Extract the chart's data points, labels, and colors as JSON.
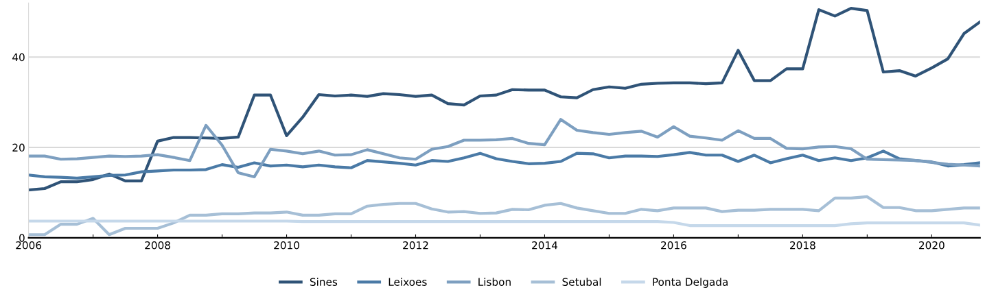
{
  "chart_data": {
    "type": "line",
    "x": [
      2006.0,
      2006.25,
      2006.5,
      2006.75,
      2007.0,
      2007.25,
      2007.5,
      2007.75,
      2008.0,
      2008.25,
      2008.5,
      2008.75,
      2009.0,
      2009.25,
      2009.5,
      2009.75,
      2010.0,
      2010.25,
      2010.5,
      2010.75,
      2011.0,
      2011.25,
      2011.5,
      2011.75,
      2012.0,
      2012.25,
      2012.5,
      2012.75,
      2013.0,
      2013.25,
      2013.5,
      2013.75,
      2014.0,
      2014.25,
      2014.5,
      2014.75,
      2015.0,
      2015.25,
      2015.5,
      2015.75,
      2016.0,
      2016.25,
      2016.5,
      2016.75,
      2017.0,
      2017.25,
      2017.5,
      2017.75,
      2018.0,
      2018.25,
      2018.5,
      2018.75,
      2019.0,
      2019.25,
      2019.5,
      2019.75,
      2020.0,
      2020.25,
      2020.5,
      2020.75
    ],
    "series": [
      {
        "name": "Sines",
        "color": "#2f5377",
        "values": [
          10.6,
          10.9,
          12.4,
          12.4,
          12.9,
          14.1,
          12.6,
          12.6,
          21.4,
          22.2,
          22.2,
          22.1,
          22.0,
          22.3,
          31.6,
          31.6,
          22.6,
          26.7,
          31.7,
          31.4,
          31.6,
          31.3,
          31.9,
          31.7,
          31.3,
          31.6,
          29.7,
          29.4,
          31.4,
          31.6,
          32.8,
          32.7,
          32.7,
          31.2,
          31.0,
          32.8,
          33.4,
          33.1,
          34.0,
          34.2,
          34.3,
          34.3,
          34.1,
          34.3,
          41.5,
          34.8,
          34.8,
          37.4,
          37.4,
          50.5,
          49.1,
          50.8,
          50.3,
          36.7,
          37.0,
          35.8,
          37.6,
          39.6,
          45.2,
          47.8
        ]
      },
      {
        "name": "Leixoes",
        "color": "#4a7aa6",
        "values": [
          13.9,
          13.5,
          13.4,
          13.2,
          13.5,
          13.8,
          13.9,
          14.6,
          14.8,
          15.0,
          15.0,
          15.1,
          16.2,
          15.6,
          16.6,
          15.9,
          16.1,
          15.7,
          16.1,
          15.7,
          15.5,
          17.1,
          16.8,
          16.5,
          16.1,
          17.1,
          16.9,
          17.7,
          18.7,
          17.5,
          16.9,
          16.4,
          16.5,
          16.9,
          18.7,
          18.6,
          17.7,
          18.1,
          18.1,
          18.0,
          18.4,
          18.9,
          18.3,
          18.3,
          16.9,
          18.3,
          16.6,
          17.5,
          18.3,
          17.1,
          17.7,
          17.1,
          17.7,
          19.2,
          17.5,
          17.1,
          16.8,
          15.9,
          16.2,
          16.6
        ]
      },
      {
        "name": "Lisbon",
        "color": "#7d9fc0",
        "values": [
          18.1,
          18.1,
          17.4,
          17.5,
          17.8,
          18.1,
          18.0,
          18.1,
          18.4,
          17.8,
          17.1,
          24.9,
          20.5,
          14.4,
          13.5,
          19.6,
          19.2,
          18.6,
          19.2,
          18.3,
          18.4,
          19.5,
          18.6,
          17.7,
          17.4,
          19.6,
          20.2,
          21.6,
          21.6,
          21.7,
          22.0,
          20.9,
          20.6,
          26.2,
          23.8,
          23.3,
          22.9,
          23.3,
          23.6,
          22.3,
          24.6,
          22.5,
          22.1,
          21.6,
          23.7,
          22.0,
          22.0,
          19.8,
          19.7,
          20.1,
          20.2,
          19.7,
          17.4,
          17.3,
          17.2,
          17.1,
          16.7,
          16.3,
          16.1,
          15.9
        ]
      },
      {
        "name": "Setubal",
        "color": "#a6bfd6",
        "values": [
          0.7,
          0.7,
          3.0,
          3.0,
          4.3,
          0.7,
          2.1,
          2.1,
          2.1,
          3.3,
          5.0,
          5.0,
          5.3,
          5.3,
          5.5,
          5.5,
          5.7,
          5.0,
          5.0,
          5.3,
          5.3,
          7.0,
          7.4,
          7.6,
          7.6,
          6.4,
          5.7,
          5.8,
          5.4,
          5.5,
          6.3,
          6.2,
          7.2,
          7.6,
          6.6,
          6.0,
          5.4,
          5.4,
          6.3,
          6.0,
          6.6,
          6.6,
          6.6,
          5.8,
          6.1,
          6.1,
          6.3,
          6.3,
          6.3,
          6.0,
          8.8,
          8.8,
          9.1,
          6.7,
          6.7,
          6.0,
          6.0,
          6.3,
          6.6,
          6.6
        ]
      },
      {
        "name": "Ponta Delgada",
        "color": "#c5d8ea",
        "values": [
          3.7,
          3.7,
          3.7,
          3.7,
          3.7,
          3.7,
          3.7,
          3.7,
          3.7,
          3.7,
          3.7,
          3.7,
          3.7,
          3.7,
          3.7,
          3.7,
          3.7,
          3.6,
          3.6,
          3.6,
          3.6,
          3.6,
          3.6,
          3.6,
          3.6,
          3.6,
          3.6,
          3.6,
          3.6,
          3.6,
          3.6,
          3.6,
          3.6,
          3.6,
          3.6,
          3.6,
          3.6,
          3.6,
          3.6,
          3.6,
          3.4,
          2.7,
          2.7,
          2.7,
          2.7,
          2.7,
          2.7,
          2.7,
          2.7,
          2.7,
          2.7,
          3.1,
          3.3,
          3.3,
          3.3,
          3.3,
          3.3,
          3.3,
          3.3,
          2.8
        ]
      }
    ],
    "xlim": [
      2006,
      2020.75
    ],
    "xticks": [
      2006,
      {
        "value": 2007,
        "label": null
      },
      2008,
      {
        "value": 2009,
        "label": null
      },
      2010,
      {
        "value": 2011,
        "label": null
      },
      2012,
      {
        "value": 2013,
        "label": null
      },
      2014,
      {
        "value": 2015,
        "label": null
      },
      2016,
      {
        "value": 2017,
        "label": null
      },
      2018,
      {
        "value": 2019,
        "label": null
      },
      2020
    ],
    "ylim": [
      0,
      52
    ],
    "yticks": [
      0,
      20,
      40
    ],
    "grid": "y",
    "legend": "bottom",
    "marker": "none",
    "line_style": "solid"
  }
}
